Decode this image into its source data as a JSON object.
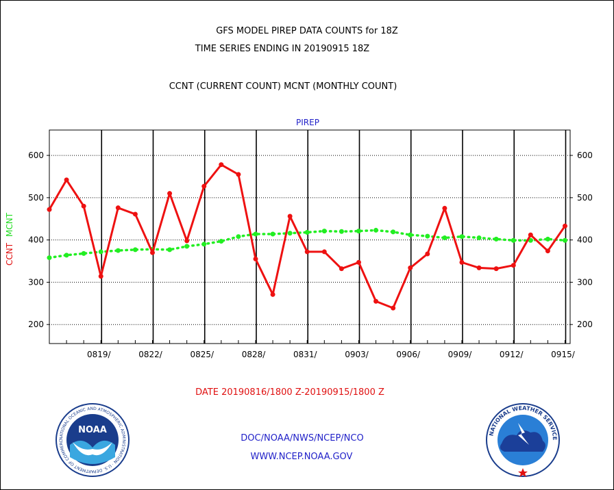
{
  "header": {
    "title_line1": "GFS MODEL PIREP DATA COUNTS for 18Z",
    "title_line2": "TIME SERIES ENDING IN 20190915 18Z",
    "subtitle": "CCNT (CURRENT COUNT) MCNT (MONTHLY COUNT)"
  },
  "footer": {
    "date_range": "DATE 20190816/1800 Z-20190915/1800 Z",
    "org": "DOC/NOAA/NWS/NCEP/NCO",
    "url": "WWW.NCEP.NOAA.GOV",
    "noaa_logo_text": "NOAA",
    "noaa_ring_text": "NATIONAL OCEANIC AND ATMOSPHERIC ADMINISTRATION · U.S. DEPARTMENT OF COMMERCE ·",
    "nws_ring_text": "NATIONAL WEATHER SERVICE"
  },
  "colors": {
    "ccnt": "#ee1111",
    "mcnt": "#22ee22",
    "text_blue": "#1f1fc8",
    "grid": "#000000"
  },
  "chart_data": {
    "type": "line",
    "title": "PIREP",
    "ylabel_ccnt": "CCNT",
    "ylabel_mcnt": "MCNT",
    "xlabel": "",
    "x_start": "20190816/1800",
    "x_end": "20190915/1800",
    "ylim": [
      155,
      660
    ],
    "y_ticks": [
      200,
      300,
      400,
      500,
      600
    ],
    "x_ticks": [
      "0819/",
      "0822/",
      "0825/",
      "0828/",
      "0831/",
      "0903/",
      "0906/",
      "0909/",
      "0912/",
      "0915/"
    ],
    "x_tick_days": [
      3,
      6,
      9,
      12,
      15,
      18,
      21,
      24,
      27,
      30
    ],
    "grid": true,
    "series": [
      {
        "name": "CCNT",
        "color": "#ee1111",
        "style": "solid",
        "days": [
          0,
          1,
          2,
          3,
          4,
          5,
          6,
          7,
          8,
          9,
          10,
          11,
          12,
          13,
          14,
          15,
          16,
          17,
          18,
          19,
          20,
          21,
          22,
          23,
          24,
          25,
          26,
          27,
          28,
          29,
          30
        ],
        "values": [
          472,
          542,
          480,
          314,
          476,
          461,
          370,
          510,
          398,
          527,
          578,
          555,
          355,
          271,
          456,
          372,
          372,
          332,
          347,
          255,
          239,
          334,
          367,
          475,
          347,
          334,
          332,
          340,
          412,
          374,
          433
        ]
      },
      {
        "name": "MCNT",
        "color": "#22ee22",
        "style": "dotted",
        "days": [
          0,
          1,
          2,
          3,
          4,
          5,
          6,
          7,
          8,
          9,
          10,
          11,
          12,
          13,
          14,
          15,
          16,
          17,
          18,
          19,
          20,
          21,
          22,
          23,
          24,
          25,
          26,
          27,
          28,
          29,
          30
        ],
        "values": [
          358,
          364,
          368,
          372,
          375,
          377,
          378,
          377,
          385,
          390,
          397,
          408,
          414,
          414,
          416,
          418,
          421,
          420,
          421,
          423,
          419,
          412,
          409,
          405,
          408,
          405,
          402,
          399,
          399,
          402,
          399
        ]
      }
    ]
  }
}
